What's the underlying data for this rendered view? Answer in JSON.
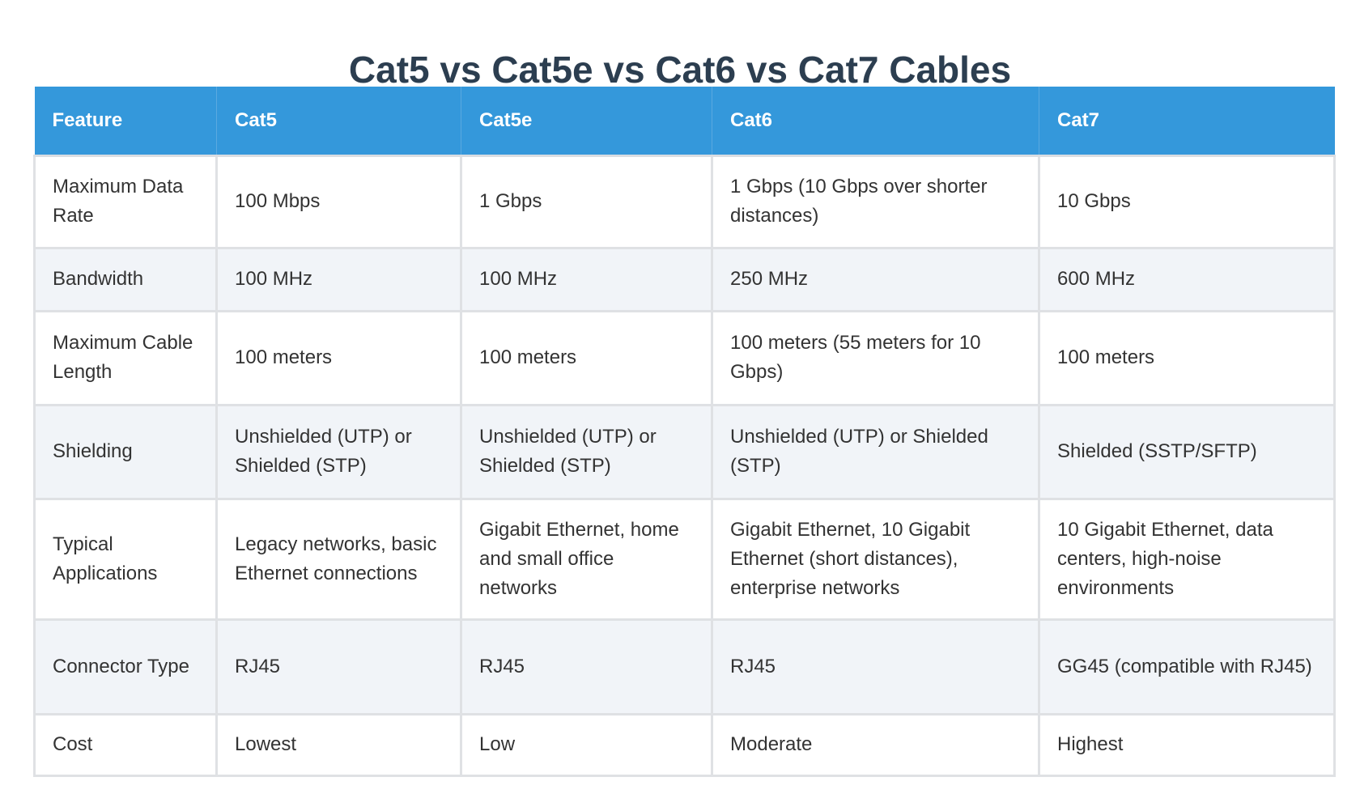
{
  "title": "Cat5 vs Cat5e vs Cat6 vs Cat7 Cables",
  "colors": {
    "header_bg": "#3498db",
    "title": "#2c3e50",
    "stripe": "#f1f4f8",
    "text": "#333333"
  },
  "table": {
    "headers": [
      "Feature",
      "Cat5",
      "Cat5e",
      "Cat6",
      "Cat7"
    ],
    "rows": [
      [
        "Maximum Data Rate",
        "100 Mbps",
        "1 Gbps",
        "1 Gbps (10 Gbps over shorter distances)",
        "10 Gbps"
      ],
      [
        "Bandwidth",
        "100 MHz",
        "100 MHz",
        "250 MHz",
        "600 MHz"
      ],
      [
        "Maximum Cable Length",
        "100 meters",
        "100 meters",
        "100 meters (55 meters for 10 Gbps)",
        "100 meters"
      ],
      [
        "Shielding",
        "Unshielded (UTP) or Shielded (STP)",
        "Unshielded (UTP) or Shielded (STP)",
        "Unshielded (UTP) or Shielded (STP)",
        "Shielded (SSTP/SFTP)"
      ],
      [
        "Typical Applications",
        "Legacy networks, basic Ethernet connections",
        "Gigabit Ethernet, home and small office networks",
        "Gigabit Ethernet, 10 Gigabit Ethernet (short distances), enterprise networks",
        "10 Gigabit Ethernet, data centers, high-noise environments"
      ],
      [
        "Connector Type",
        "RJ45",
        "RJ45",
        "RJ45",
        "GG45 (compatible with RJ45)"
      ],
      [
        "Cost",
        "Lowest",
        "Low",
        "Moderate",
        "Highest"
      ]
    ]
  }
}
